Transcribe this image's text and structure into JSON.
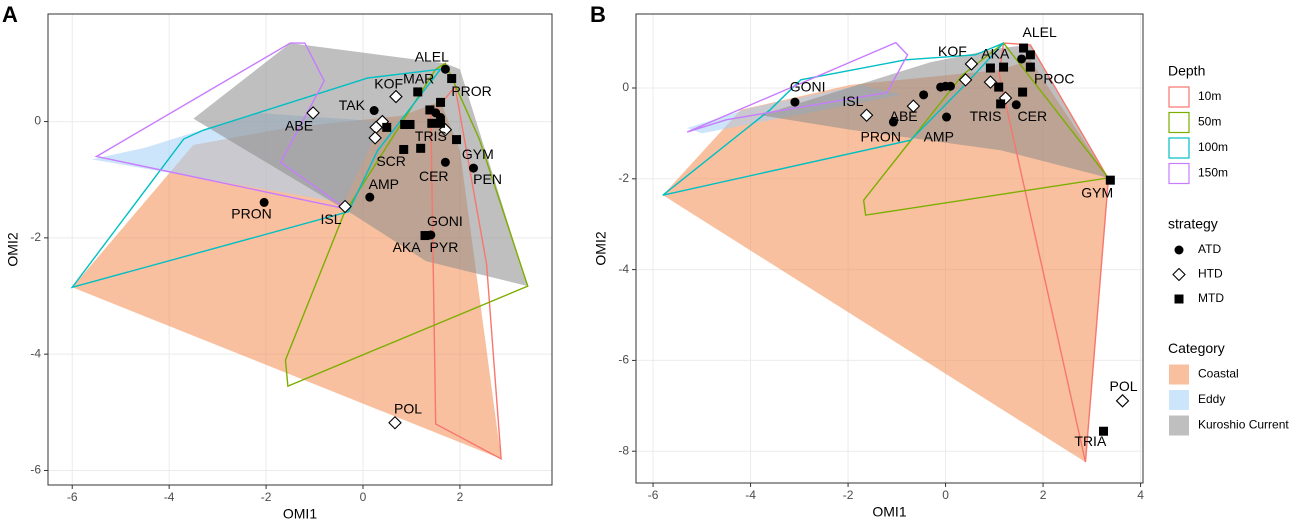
{
  "chart_data": [
    {
      "type": "scatter",
      "panel_label": "A",
      "x_label": "OMI1",
      "y_label": "OMI2",
      "xlim": [
        -6.5,
        3.9
      ],
      "ylim": [
        -6.25,
        1.85
      ],
      "xticks": [
        -6,
        -4,
        -2,
        0,
        2
      ],
      "yticks": [
        -6,
        -4,
        -2,
        0
      ],
      "grid": true,
      "areas": [
        {
          "x": [
            -6,
            -3.5,
            -1.5,
            0.8,
            1.6,
            2.0,
            2.85
          ],
          "y": [
            -2.85,
            -0.4,
            -0.1,
            0.1,
            0.35,
            -0.5,
            -5.8
          ]
        },
        {
          "x": [
            -5.6,
            -4.5,
            -2.2,
            0.4,
            -0.4
          ],
          "y": [
            -0.65,
            -0.45,
            0.15,
            0.0,
            -1.4
          ]
        },
        {
          "x": [
            -3.5,
            -1.5,
            1.7,
            2.0,
            3.4,
            1.3,
            -0.2
          ],
          "y": [
            0.05,
            1.35,
            1.0,
            0.9,
            -2.83,
            -2.4,
            -1.6
          ]
        }
      ],
      "outlines": [
        {
          "x": [
            1.4,
            1.9,
            2.55,
            2.85,
            1.5
          ],
          "y": [
            0.1,
            0.6,
            -2.45,
            -5.8,
            -5.2
          ]
        },
        {
          "x": [
            -1.55,
            -1.6,
            -0.4,
            1.5,
            1.7,
            2.4,
            3.4
          ],
          "y": [
            -4.55,
            -4.1,
            -1.6,
            0.9,
            1.0,
            -0.3,
            -2.83
          ]
        },
        {
          "x": [
            -6,
            -3.7,
            -3.3,
            0.1,
            1.6,
            0.3,
            -0.3
          ],
          "y": [
            -2.85,
            -0.3,
            -0.15,
            0.75,
            0.9,
            -0.5,
            -1.55
          ]
        },
        {
          "x": [
            -5.5,
            -1.5,
            -1.2,
            -0.8,
            -1.7,
            -0.35
          ],
          "y": [
            -0.6,
            1.35,
            1.35,
            0.7,
            -0.7,
            -1.5
          ]
        }
      ],
      "series": [
        {
          "x": [
            1.7,
            0.23,
            1.5,
            1.6,
            1.7,
            2.28,
            0.14,
            -2.04,
            1.4
          ],
          "y": [
            0.9,
            0.19,
            0.15,
            0.07,
            -0.7,
            -0.8,
            -1.3,
            -1.39,
            -1.95
          ]
        },
        {
          "x": [
            -1.03,
            0.68,
            0.4,
            0.27,
            0.25,
            1.7,
            -0.37,
            0.66
          ],
          "y": [
            0.15,
            0.43,
            0,
            -0.1,
            -0.28,
            -0.14,
            -1.46,
            -5.18
          ]
        },
        {
          "x": [
            1.13,
            1.83,
            1.6,
            1.38,
            1.42,
            1.6,
            0.86,
            0.97,
            0.49,
            0.84,
            1.19,
            1.93,
            1.28
          ],
          "y": [
            0.51,
            0.74,
            0.33,
            0.2,
            -0.03,
            -0.03,
            -0.05,
            -0.05,
            -0.1,
            -0.48,
            -0.46,
            -0.31,
            -1.96
          ]
        }
      ],
      "annotations": [
        {
          "text": "ALEL",
          "x": 1.42,
          "y": 1.1
        },
        {
          "text": "MAR",
          "x": 1.15,
          "y": 0.72
        },
        {
          "text": "PROR",
          "x": 2.24,
          "y": 0.5
        },
        {
          "text": "KOF",
          "x": 0.53,
          "y": 0.63
        },
        {
          "text": "TAK",
          "x": -0.23,
          "y": 0.26
        },
        {
          "text": "ABE",
          "x": -1.32,
          "y": -0.09
        },
        {
          "text": "TRIS",
          "x": 1.4,
          "y": -0.27
        },
        {
          "text": "SCR",
          "x": 0.58,
          "y": -0.7
        },
        {
          "text": "GYM",
          "x": 2.37,
          "y": -0.58
        },
        {
          "text": "CER",
          "x": 1.46,
          "y": -0.96
        },
        {
          "text": "PEN",
          "x": 2.57,
          "y": -1.01
        },
        {
          "text": "AMP",
          "x": 0.43,
          "y": -1.1
        },
        {
          "text": "PRON",
          "x": -2.3,
          "y": -1.6
        },
        {
          "text": "ISL",
          "x": -0.66,
          "y": -1.7
        },
        {
          "text": "GONI",
          "x": 1.69,
          "y": -1.73
        },
        {
          "text": "AKA",
          "x": 0.9,
          "y": -2.18
        },
        {
          "text": "PYR",
          "x": 1.67,
          "y": -2.18
        },
        {
          "text": "POL",
          "x": 0.93,
          "y": -4.96
        }
      ]
    },
    {
      "type": "scatter",
      "panel_label": "B",
      "x_label": "OMI1",
      "y_label": "OMI2",
      "xlim": [
        -6.35,
        4.05
      ],
      "ylim": [
        -8.7,
        1.63
      ],
      "xticks": [
        -6,
        -4,
        -2,
        0,
        2,
        4
      ],
      "yticks": [
        -8,
        -6,
        -4,
        -2,
        0
      ],
      "grid": true,
      "areas": [
        {
          "x": [
            -5.8,
            -4.2,
            -1.95,
            1.13,
            1.74,
            3.34,
            2.87
          ],
          "y": [
            -2.36,
            -0.48,
            0.07,
            0.4,
            0.62,
            -1.98,
            -8.24
          ]
        },
        {
          "x": [
            -5.3,
            -4,
            -1.74,
            -0.9,
            -5
          ],
          "y": [
            -0.88,
            -0.44,
            0.07,
            -0.15,
            -1.0
          ]
        },
        {
          "x": [
            -3.8,
            -0.3,
            1.13,
            1.74,
            3.34,
            1.13,
            -1.95
          ],
          "y": [
            -0.6,
            0.57,
            0.88,
            0.95,
            -1.98,
            -1.37,
            -0.92
          ]
        }
      ],
      "outlines": [
        {
          "x": [
            1.19,
            1.74,
            3.34,
            2.87,
            1.1
          ],
          "y": [
            0.99,
            0.95,
            -2.0,
            -8.24,
            0.3
          ]
        },
        {
          "x": [
            1.19,
            3.34,
            -1.64,
            -1.68,
            0.35
          ],
          "y": [
            0.99,
            -1.98,
            -2.8,
            -2.47,
            0.29
          ]
        },
        {
          "x": [
            -5.8,
            -3.6,
            -2.97,
            -0.82,
            0.61,
            1.19,
            0.4,
            -0.72
          ],
          "y": [
            -2.36,
            -0.48,
            0.18,
            0.62,
            0.73,
            0.99,
            0.07,
            -1.15
          ]
        },
        {
          "x": [
            -5.3,
            -1.02,
            -0.78,
            -1.2,
            -4.5
          ],
          "y": [
            -0.97,
            1.0,
            0.73,
            -0.1,
            -0.7
          ]
        }
      ],
      "series": [
        {
          "x": [
            -3.09,
            -1.07,
            -0.45,
            -0.1,
            0,
            0.1,
            0.02,
            1.56,
            1.45
          ],
          "y": [
            -0.31,
            -0.75,
            -0.15,
            0.02,
            0.04,
            0.04,
            -0.64,
            0.64,
            -0.37
          ]
        },
        {
          "x": [
            -1.62,
            -0.66,
            0.53,
            0.41,
            0.92,
            1.23,
            3.63
          ],
          "y": [
            -0.6,
            -0.4,
            0.53,
            0.18,
            0.13,
            -0.22,
            -6.89
          ]
        },
        {
          "x": [
            1.6,
            1.74,
            1.74,
            0.92,
            1.19,
            1.09,
            1.58,
            1.13,
            3.38,
            3.24
          ],
          "y": [
            0.88,
            0.73,
            0.46,
            0.44,
            0.46,
            0.02,
            -0.09,
            -0.35,
            -2.03,
            -7.56
          ]
        }
      ],
      "annotations": [
        {
          "text": "ALEL",
          "x": 1.93,
          "y": 1.21
        },
        {
          "text": "KOF",
          "x": 0.14,
          "y": 0.79
        },
        {
          "text": "AKA",
          "x": 1.02,
          "y": 0.73
        },
        {
          "text": "PROC",
          "x": 2.23,
          "y": 0.18
        },
        {
          "text": "GONI",
          "x": -2.83,
          "y": 0
        },
        {
          "text": "ISL",
          "x": -1.9,
          "y": -0.31
        },
        {
          "text": "ABE",
          "x": -0.86,
          "y": -0.64
        },
        {
          "text": "PRON",
          "x": -1.33,
          "y": -1.1
        },
        {
          "text": "AMP",
          "x": -0.14,
          "y": -1.1
        },
        {
          "text": "TRIS",
          "x": 0.82,
          "y": -0.64
        },
        {
          "text": "CER",
          "x": 1.78,
          "y": -0.64
        },
        {
          "text": "GYM",
          "x": 3.11,
          "y": -2.33
        },
        {
          "text": "POL",
          "x": 3.65,
          "y": -6.59
        },
        {
          "text": "TRIA",
          "x": 2.97,
          "y": -7.8
        }
      ]
    }
  ],
  "legend": {
    "position": "right",
    "groups": [
      {
        "title": "Depth",
        "items": [
          {
            "name": "10m",
            "color": "#f8766d"
          },
          {
            "name": "50m",
            "color": "#7cae00"
          },
          {
            "name": "100m",
            "color": "#00bfc4"
          },
          {
            "name": "150m",
            "color": "#c77cff"
          }
        ]
      },
      {
        "title": "strategy",
        "items": [
          {
            "name": "ATD",
            "marker": "circle"
          },
          {
            "name": "HTD",
            "marker": "diamond"
          },
          {
            "name": "MTD",
            "marker": "square"
          }
        ]
      },
      {
        "title": "Category",
        "alpha": 0.55,
        "items": [
          {
            "name": "Coastal",
            "color": "#f28c50"
          },
          {
            "name": "Eddy",
            "color": "#a4cff5"
          },
          {
            "name": "Kuroshio Current",
            "color": "#8a8a8a"
          }
        ]
      }
    ]
  }
}
